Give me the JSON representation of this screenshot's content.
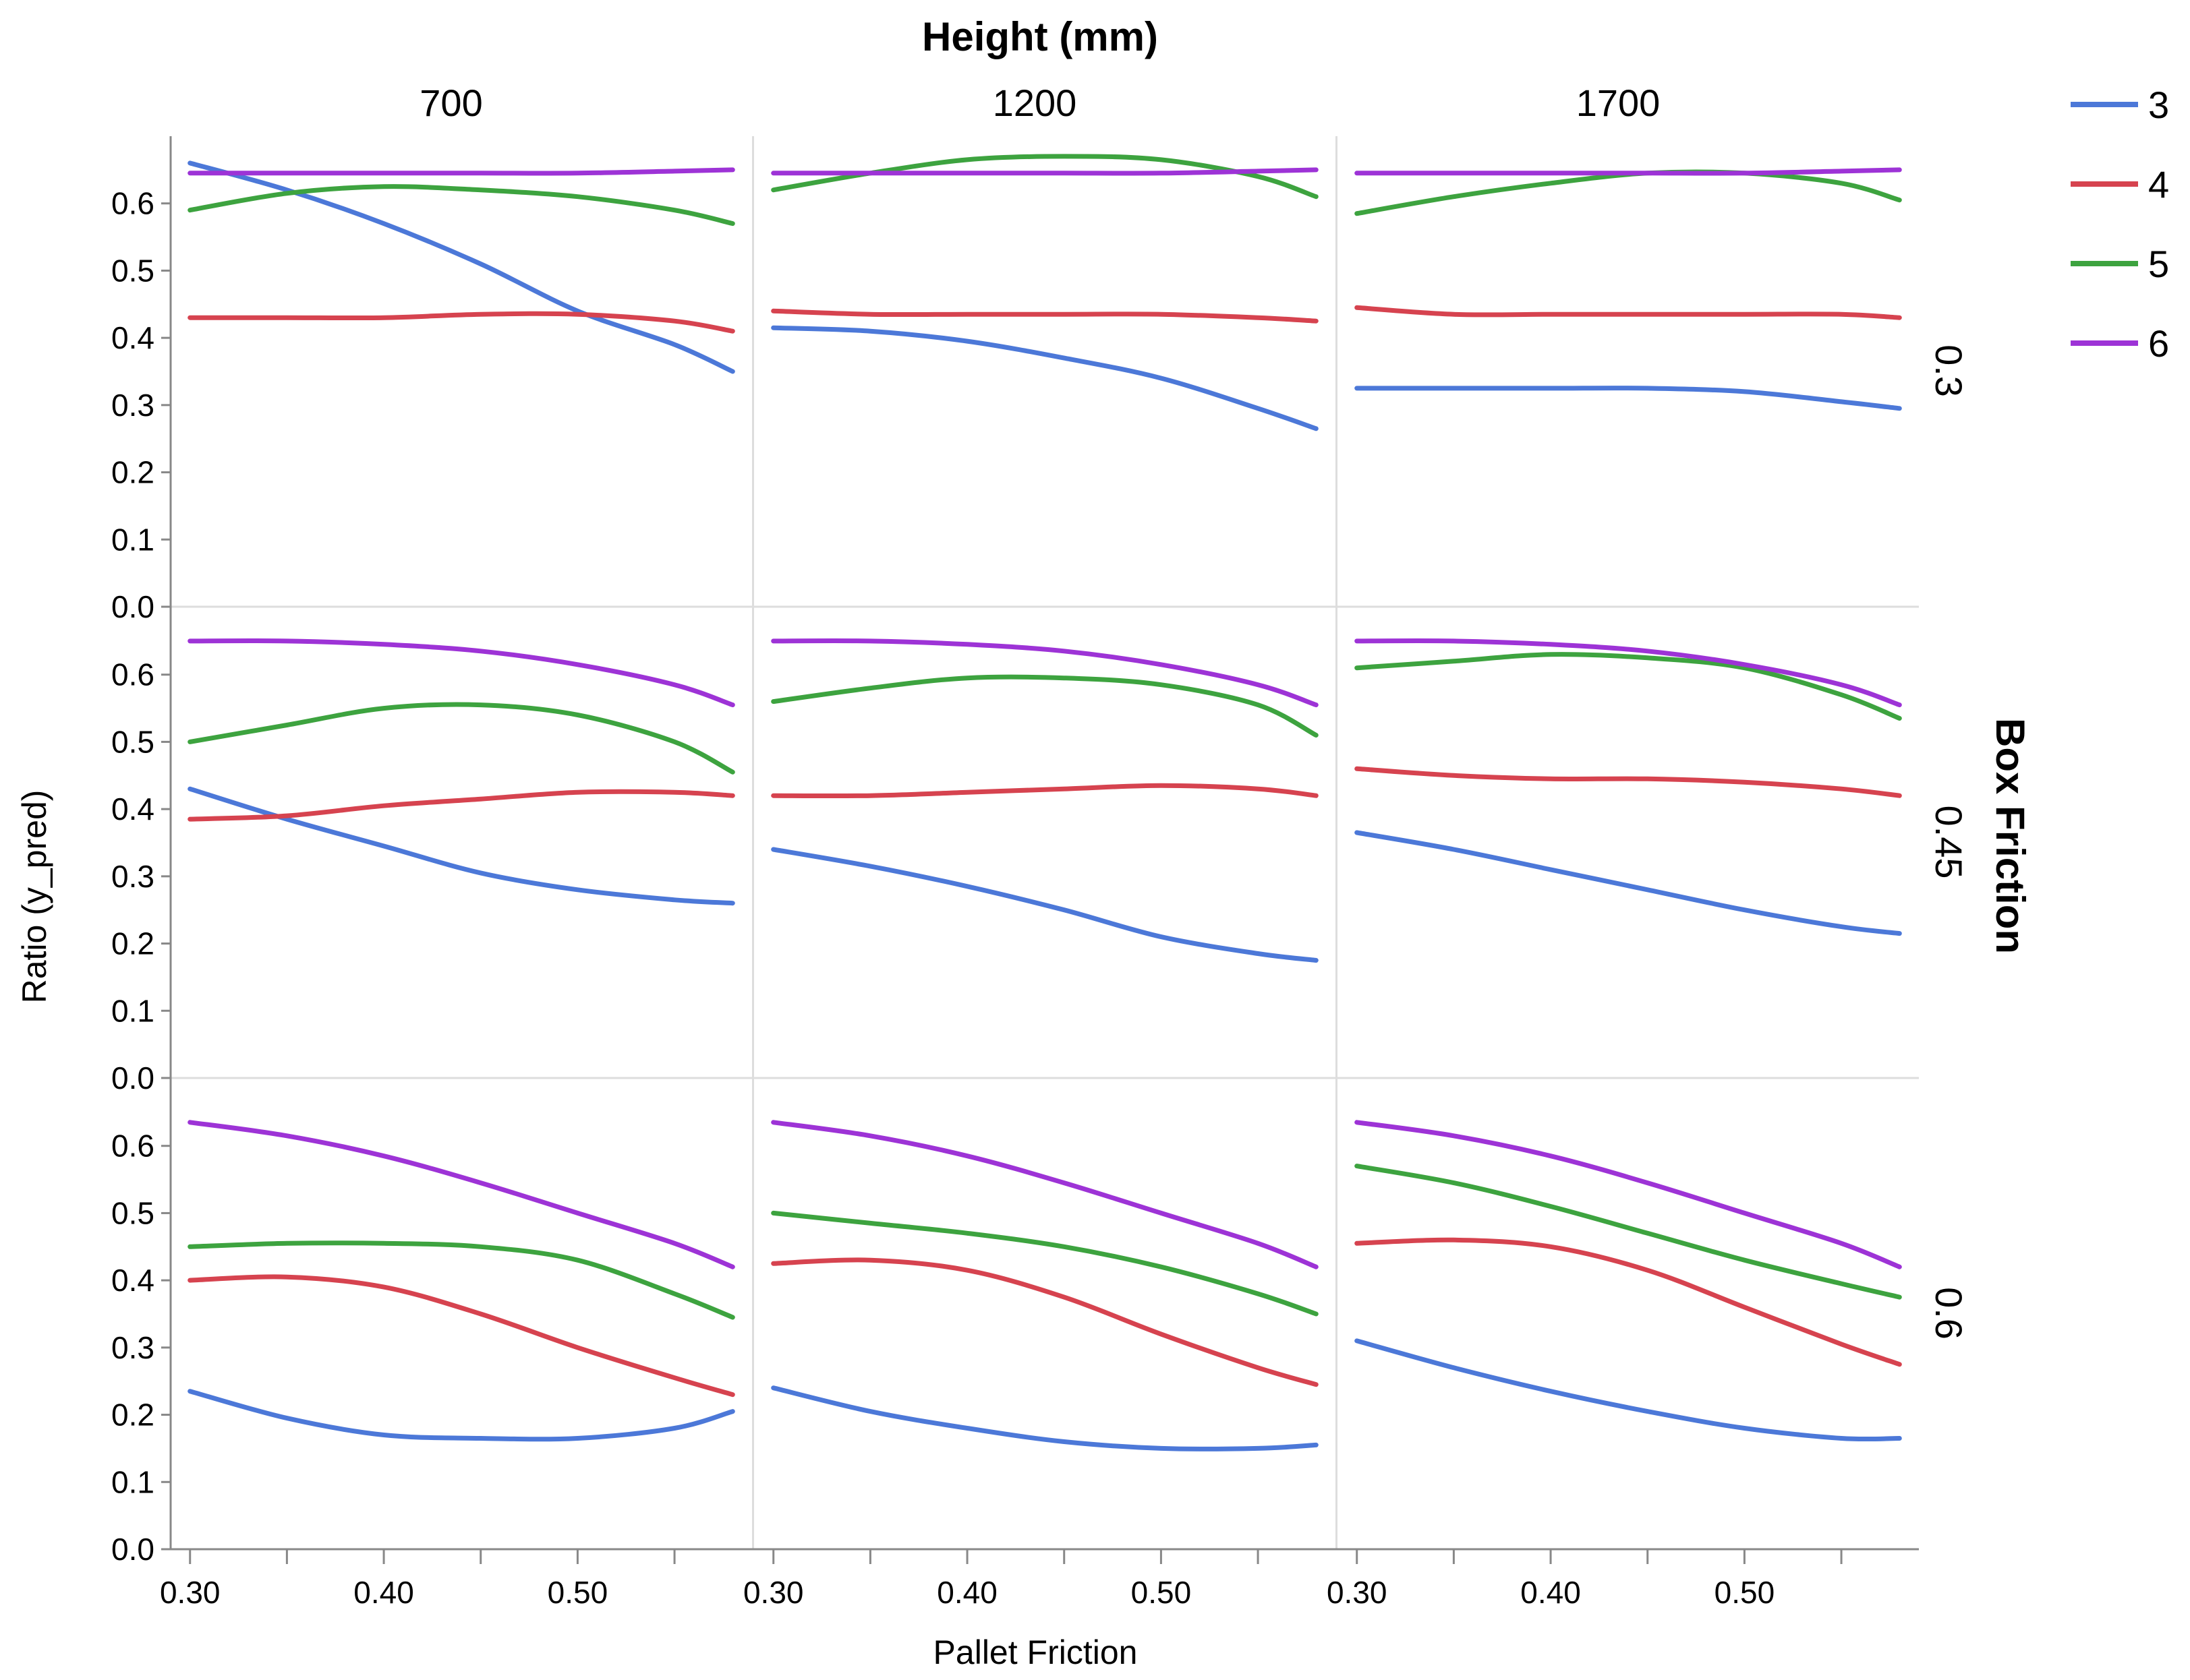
{
  "chart_data": {
    "type": "line",
    "facet_column_title": "Height (mm)",
    "facet_row_title": "Box Friction",
    "xlabel": "Pallet Friction",
    "ylabel": "Ratio (y_pred)",
    "xlim": [
      0.29,
      0.59
    ],
    "ylim": [
      0,
      0.7
    ],
    "x_ticks": [
      0.3,
      0.4,
      0.5
    ],
    "x_tick_labels": [
      "0.30",
      "0.40",
      "0.50"
    ],
    "x_minor_ticks": [
      0.3,
      0.35,
      0.4,
      0.45,
      0.5,
      0.55
    ],
    "y_ticks": [
      0.0,
      0.1,
      0.2,
      0.3,
      0.4,
      0.5,
      0.6
    ],
    "y_tick_labels": [
      "0.0",
      "0.1",
      "0.2",
      "0.3",
      "0.4",
      "0.5",
      "0.6"
    ],
    "columns": [
      "700",
      "1200",
      "1700"
    ],
    "rows": [
      "0.3",
      "0.45",
      "0.6"
    ],
    "x": [
      0.3,
      0.35,
      0.4,
      0.45,
      0.5,
      0.55,
      0.58
    ],
    "legend": [
      {
        "name": "3",
        "color": "#4c78d8"
      },
      {
        "name": "4",
        "color": "#d6434f"
      },
      {
        "name": "5",
        "color": "#3da33f"
      },
      {
        "name": "6",
        "color": "#9d33d6"
      }
    ],
    "panels": [
      {
        "row": "0.3",
        "col": "700",
        "series": [
          {
            "name": "3",
            "values": [
              0.66,
              0.62,
              0.57,
              0.51,
              0.44,
              0.39,
              0.35
            ]
          },
          {
            "name": "4",
            "values": [
              0.43,
              0.43,
              0.43,
              0.435,
              0.435,
              0.425,
              0.41
            ]
          },
          {
            "name": "5",
            "values": [
              0.59,
              0.615,
              0.625,
              0.62,
              0.61,
              0.59,
              0.57
            ]
          },
          {
            "name": "6",
            "values": [
              0.645,
              0.645,
              0.645,
              0.645,
              0.645,
              0.648,
              0.65
            ]
          }
        ]
      },
      {
        "row": "0.3",
        "col": "1200",
        "series": [
          {
            "name": "3",
            "values": [
              0.415,
              0.41,
              0.395,
              0.37,
              0.34,
              0.295,
              0.265
            ]
          },
          {
            "name": "4",
            "values": [
              0.44,
              0.435,
              0.435,
              0.435,
              0.435,
              0.43,
              0.425
            ]
          },
          {
            "name": "5",
            "values": [
              0.62,
              0.645,
              0.665,
              0.67,
              0.665,
              0.64,
              0.61
            ]
          },
          {
            "name": "6",
            "values": [
              0.645,
              0.645,
              0.645,
              0.645,
              0.645,
              0.648,
              0.65
            ]
          }
        ]
      },
      {
        "row": "0.3",
        "col": "1700",
        "series": [
          {
            "name": "3",
            "values": [
              0.325,
              0.325,
              0.325,
              0.325,
              0.32,
              0.305,
              0.295
            ]
          },
          {
            "name": "4",
            "values": [
              0.445,
              0.435,
              0.435,
              0.435,
              0.435,
              0.435,
              0.43
            ]
          },
          {
            "name": "5",
            "values": [
              0.585,
              0.61,
              0.63,
              0.645,
              0.645,
              0.63,
              0.605
            ]
          },
          {
            "name": "6",
            "values": [
              0.645,
              0.645,
              0.645,
              0.645,
              0.645,
              0.648,
              0.65
            ]
          }
        ]
      },
      {
        "row": "0.45",
        "col": "700",
        "series": [
          {
            "name": "3",
            "values": [
              0.43,
              0.385,
              0.345,
              0.305,
              0.28,
              0.265,
              0.26
            ]
          },
          {
            "name": "4",
            "values": [
              0.385,
              0.39,
              0.405,
              0.415,
              0.425,
              0.425,
              0.42
            ]
          },
          {
            "name": "5",
            "values": [
              0.5,
              0.525,
              0.55,
              0.555,
              0.54,
              0.5,
              0.455
            ]
          },
          {
            "name": "6",
            "values": [
              0.65,
              0.65,
              0.645,
              0.635,
              0.615,
              0.585,
              0.555
            ]
          }
        ]
      },
      {
        "row": "0.45",
        "col": "1200",
        "series": [
          {
            "name": "3",
            "values": [
              0.34,
              0.315,
              0.285,
              0.25,
              0.21,
              0.185,
              0.175
            ]
          },
          {
            "name": "4",
            "values": [
              0.42,
              0.42,
              0.425,
              0.43,
              0.435,
              0.43,
              0.42
            ]
          },
          {
            "name": "5",
            "values": [
              0.56,
              0.58,
              0.595,
              0.595,
              0.585,
              0.555,
              0.51
            ]
          },
          {
            "name": "6",
            "values": [
              0.65,
              0.65,
              0.645,
              0.635,
              0.615,
              0.585,
              0.555
            ]
          }
        ]
      },
      {
        "row": "0.45",
        "col": "1700",
        "series": [
          {
            "name": "3",
            "values": [
              0.365,
              0.34,
              0.31,
              0.28,
              0.25,
              0.225,
              0.215
            ]
          },
          {
            "name": "4",
            "values": [
              0.46,
              0.45,
              0.445,
              0.445,
              0.44,
              0.43,
              0.42
            ]
          },
          {
            "name": "5",
            "values": [
              0.61,
              0.62,
              0.63,
              0.625,
              0.61,
              0.57,
              0.535
            ]
          },
          {
            "name": "6",
            "values": [
              0.65,
              0.65,
              0.645,
              0.635,
              0.615,
              0.585,
              0.555
            ]
          }
        ]
      },
      {
        "row": "0.6",
        "col": "700",
        "series": [
          {
            "name": "3",
            "values": [
              0.235,
              0.195,
              0.17,
              0.165,
              0.165,
              0.18,
              0.205
            ]
          },
          {
            "name": "4",
            "values": [
              0.4,
              0.405,
              0.39,
              0.35,
              0.3,
              0.255,
              0.23
            ]
          },
          {
            "name": "5",
            "values": [
              0.45,
              0.455,
              0.455,
              0.45,
              0.43,
              0.38,
              0.345
            ]
          },
          {
            "name": "6",
            "values": [
              0.635,
              0.615,
              0.585,
              0.545,
              0.5,
              0.455,
              0.42
            ]
          }
        ]
      },
      {
        "row": "0.6",
        "col": "1200",
        "series": [
          {
            "name": "3",
            "values": [
              0.24,
              0.205,
              0.18,
              0.16,
              0.15,
              0.15,
              0.155
            ]
          },
          {
            "name": "4",
            "values": [
              0.425,
              0.43,
              0.415,
              0.375,
              0.32,
              0.27,
              0.245
            ]
          },
          {
            "name": "5",
            "values": [
              0.5,
              0.485,
              0.47,
              0.45,
              0.42,
              0.38,
              0.35
            ]
          },
          {
            "name": "6",
            "values": [
              0.635,
              0.615,
              0.585,
              0.545,
              0.5,
              0.455,
              0.42
            ]
          }
        ]
      },
      {
        "row": "0.6",
        "col": "1700",
        "series": [
          {
            "name": "3",
            "values": [
              0.31,
              0.27,
              0.235,
              0.205,
              0.18,
              0.165,
              0.165
            ]
          },
          {
            "name": "4",
            "values": [
              0.455,
              0.46,
              0.45,
              0.415,
              0.36,
              0.305,
              0.275
            ]
          },
          {
            "name": "5",
            "values": [
              0.57,
              0.545,
              0.51,
              0.47,
              0.43,
              0.395,
              0.375
            ]
          },
          {
            "name": "6",
            "values": [
              0.635,
              0.615,
              0.585,
              0.545,
              0.5,
              0.455,
              0.42
            ]
          }
        ]
      }
    ]
  }
}
